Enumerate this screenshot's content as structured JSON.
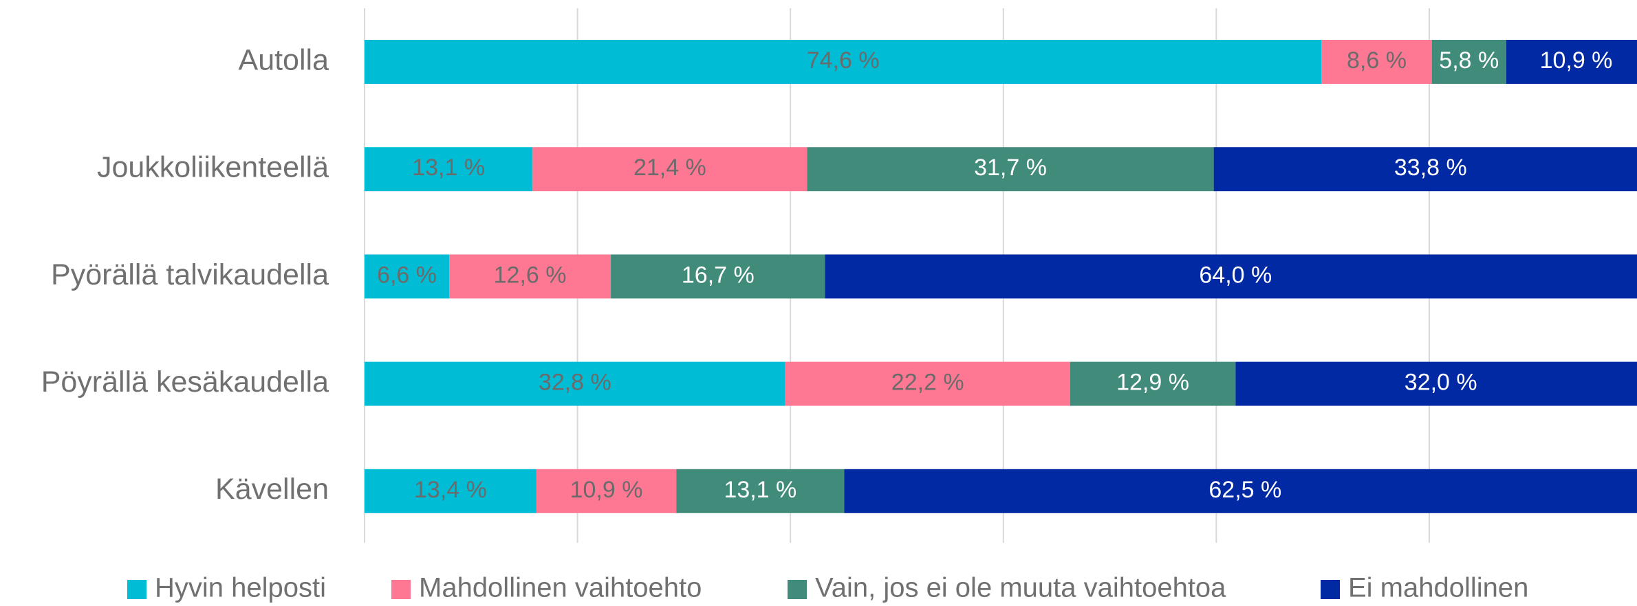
{
  "chart_data": {
    "type": "stacked-barh",
    "categories": [
      "Autolla",
      "Joukkoliikenteellä",
      "Pyörällä talvikaudella",
      "Pöyrällä kesäkaudella",
      "Kävellen"
    ],
    "series": [
      {
        "name": "Hyvin helposti",
        "color": "#00BCD4",
        "label_color": "#6b6b6b",
        "values": [
          74.6,
          13.1,
          6.6,
          32.8,
          13.4
        ],
        "value_labels": [
          "74,6 %",
          "13,1 %",
          "6,6 %",
          "32,8 %",
          "13,4 %"
        ]
      },
      {
        "name": "Mahdollinen vaihtoehto",
        "color": "#FF7893",
        "label_color": "#6b6b6b",
        "values": [
          8.6,
          21.4,
          12.6,
          22.2,
          10.9
        ],
        "value_labels": [
          "8,6 %",
          "21,4 %",
          "12,6 %",
          "22,2 %",
          "10,9 %"
        ]
      },
      {
        "name": "Vain, jos ei ole muuta vaihtoehtoa",
        "color": "#418B7B",
        "label_color": "#ffffff",
        "values": [
          5.8,
          31.7,
          16.7,
          12.9,
          13.1
        ],
        "value_labels": [
          "5,8 %",
          "31,7 %",
          "16,7 %",
          "12,9 %",
          "13,1 %"
        ]
      },
      {
        "name": "Ei mahdollinen",
        "color": "#0029A3",
        "label_color": "#ffffff",
        "values": [
          10.9,
          33.8,
          64.0,
          32.0,
          62.5
        ],
        "value_labels": [
          "10,9 %",
          "33,8 %",
          "64,0 %",
          "32,0 %",
          "62,5 %"
        ]
      }
    ],
    "xlim": [
      0,
      100
    ],
    "xticks": [
      0,
      16.6,
      33.2,
      49.8,
      66.4,
      83.0
    ],
    "grid": true,
    "legend": "bottom"
  }
}
